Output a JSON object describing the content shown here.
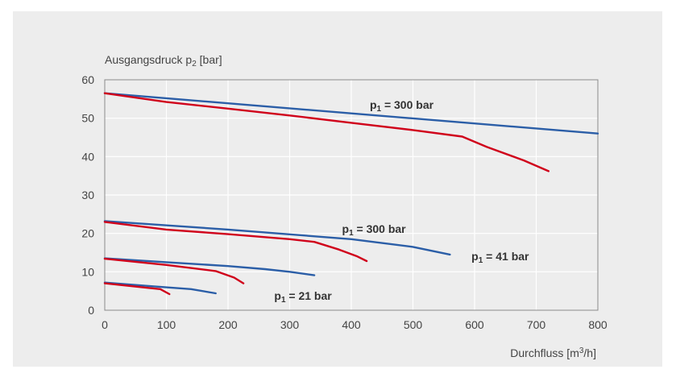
{
  "chart_data": {
    "type": "line",
    "title": "",
    "ylabel_main": "Ausgangsdruck p",
    "ylabel_sub": "2",
    "ylabel_unit": " [bar]",
    "xlabel_main": "Durchfluss [m",
    "xlabel_sup": "3",
    "xlabel_unit": "/h]",
    "xlim": [
      0,
      800
    ],
    "ylim": [
      0,
      60
    ],
    "xticks": [
      "0",
      "100",
      "200",
      "300",
      "400",
      "500",
      "600",
      "700",
      "800"
    ],
    "yticks": [
      "0",
      "10",
      "20",
      "30",
      "40",
      "50",
      "60"
    ],
    "grid": true,
    "colors": {
      "blue": "#2b5ea7",
      "red": "#d0021b"
    },
    "series": [
      {
        "color": "blue",
        "points": [
          [
            0,
            56.5
          ],
          [
            800,
            46
          ]
        ]
      },
      {
        "color": "red",
        "points": [
          [
            0,
            56.5
          ],
          [
            100,
            54.2
          ],
          [
            200,
            52.5
          ],
          [
            300,
            50.7
          ],
          [
            400,
            48.8
          ],
          [
            500,
            46.9
          ],
          [
            580,
            45.2
          ],
          [
            620,
            42.5
          ],
          [
            680,
            39
          ],
          [
            720,
            36.2
          ]
        ]
      },
      {
        "color": "blue",
        "points": [
          [
            0,
            23.2
          ],
          [
            200,
            21
          ],
          [
            400,
            18.5
          ],
          [
            500,
            16.5
          ],
          [
            560,
            14.5
          ]
        ]
      },
      {
        "color": "red",
        "points": [
          [
            0,
            23
          ],
          [
            100,
            21
          ],
          [
            200,
            19.8
          ],
          [
            300,
            18.5
          ],
          [
            340,
            17.8
          ],
          [
            380,
            15.8
          ],
          [
            410,
            14
          ],
          [
            425,
            12.8
          ]
        ]
      },
      {
        "color": "blue",
        "points": [
          [
            0,
            13.5
          ],
          [
            100,
            12.5
          ],
          [
            200,
            11.5
          ],
          [
            260,
            10.7
          ],
          [
            300,
            10
          ],
          [
            340,
            9.1
          ]
        ]
      },
      {
        "color": "red",
        "points": [
          [
            0,
            13.4
          ],
          [
            100,
            11.8
          ],
          [
            180,
            10.2
          ],
          [
            210,
            8.5
          ],
          [
            225,
            7
          ]
        ]
      },
      {
        "color": "blue",
        "points": [
          [
            0,
            7.2
          ],
          [
            80,
            6.2
          ],
          [
            140,
            5.5
          ],
          [
            180,
            4.4
          ]
        ]
      },
      {
        "color": "red",
        "points": [
          [
            0,
            7
          ],
          [
            60,
            6
          ],
          [
            90,
            5.5
          ],
          [
            105,
            4.2
          ]
        ]
      }
    ],
    "annotations": [
      {
        "main": "p",
        "sub": "1",
        "rest": " = 300 bar",
        "x": 430,
        "y": 53.5
      },
      {
        "main": "p",
        "sub": "1",
        "rest": " = 300 bar",
        "x": 385,
        "y": 21.2
      },
      {
        "main": "p",
        "sub": "1",
        "rest": " = 41 bar",
        "x": 595,
        "y": 14.1
      },
      {
        "main": "p",
        "sub": "1",
        "rest": " = 21 bar",
        "x": 275,
        "y": 3.8
      }
    ]
  }
}
